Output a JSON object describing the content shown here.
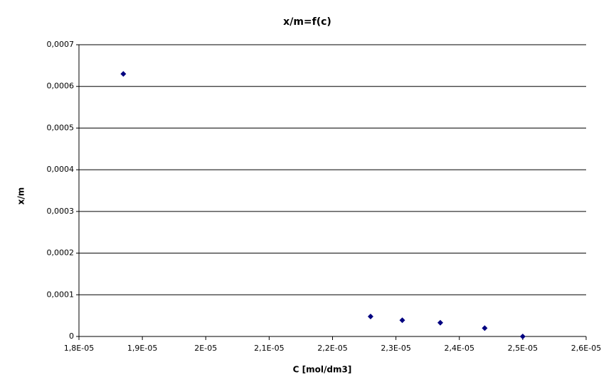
{
  "chart_data": {
    "type": "scatter",
    "title": "x/m=f(c)",
    "x_label": "C [mol/dm3]",
    "y_label": "x/m",
    "series": [
      {
        "name": "x/m",
        "color": "#000080",
        "x": [
          1.87e-05,
          2.26e-05,
          2.31e-05,
          2.37e-05,
          2.44e-05,
          2.5e-05
        ],
        "values": [
          0.00063,
          4.8e-05,
          3.9e-05,
          3.3e-05,
          2e-05,
          0
        ]
      }
    ],
    "xlim": [
      1.8e-05,
      2.6e-05
    ],
    "xticks": [
      {
        "value": 1.8e-05,
        "label": "1,8E-05"
      },
      {
        "value": 1.9e-05,
        "label": "1,9E-05"
      },
      {
        "value": 2e-05,
        "label": "2E-05"
      },
      {
        "value": 2.1e-05,
        "label": "2,1E-05"
      },
      {
        "value": 2.2e-05,
        "label": "2,2E-05"
      },
      {
        "value": 2.3e-05,
        "label": "2,3E-05"
      },
      {
        "value": 2.4e-05,
        "label": "2,4E-05"
      },
      {
        "value": 2.5e-05,
        "label": "2,5E-05"
      },
      {
        "value": 2.6e-05,
        "label": "2,6E-05"
      }
    ],
    "ylim": [
      0,
      0.0007
    ],
    "yticks": [
      0,
      {
        "value": 0.0001,
        "label": "0,0001"
      },
      {
        "value": 0.0002,
        "label": "0,0002"
      },
      {
        "value": 0.0003,
        "label": "0,0003"
      },
      {
        "value": 0.0004,
        "label": "0,0004"
      },
      {
        "value": 0.0005,
        "label": "0,0005"
      },
      {
        "value": 0.0006,
        "label": "0,0006"
      },
      {
        "value": 0.0007,
        "label": "0,0007"
      }
    ],
    "grid": true
  }
}
